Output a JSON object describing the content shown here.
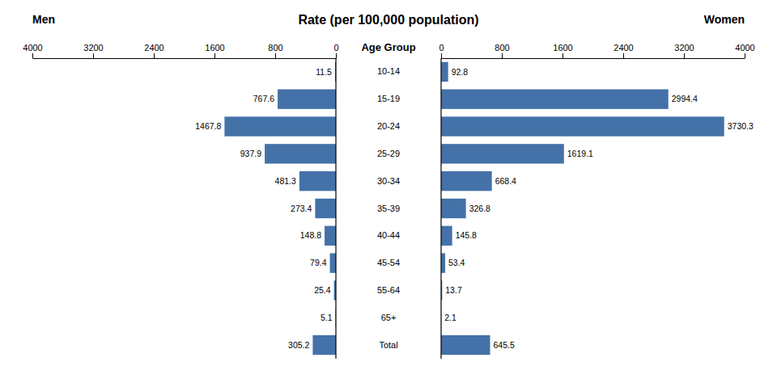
{
  "chart_data": {
    "type": "bar",
    "orientation": "horizontal",
    "title": "Rate (per 100,000 population)",
    "y_label": "Age Group",
    "categories": [
      "10-14",
      "15-19",
      "20-24",
      "25-29",
      "30-34",
      "35-39",
      "40-44",
      "45-54",
      "55-64",
      "65+",
      "Total"
    ],
    "series": [
      {
        "name": "Men",
        "values": [
          11.5,
          767.6,
          1467.8,
          937.9,
          481.3,
          273.4,
          148.8,
          79.4,
          25.4,
          5.1,
          305.2
        ]
      },
      {
        "name": "Women",
        "values": [
          92.8,
          2994.4,
          3730.3,
          1619.1,
          668.4,
          326.8,
          145.8,
          53.4,
          13.7,
          2.1,
          645.5
        ]
      }
    ],
    "color": "#4472a8",
    "xlim": [
      0,
      4000
    ],
    "xticks": [
      0,
      800,
      1600,
      2400,
      3200,
      4000
    ],
    "data_labels": true,
    "grid": false
  }
}
